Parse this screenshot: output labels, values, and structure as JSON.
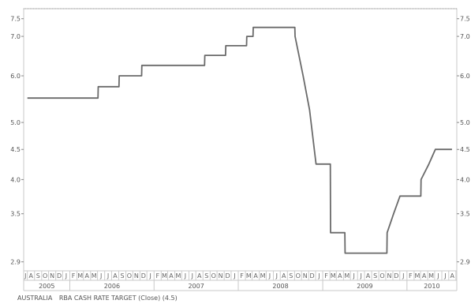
{
  "chart_data": {
    "type": "line",
    "log_scale": true,
    "grid": false,
    "ylim": [
      2.8,
      7.8
    ],
    "x_range": [
      "2005-06-15",
      "2010-08-05"
    ],
    "y_ticks": [
      "7.5",
      "7.0",
      "6.0",
      "5.0",
      "4.5",
      "4.0",
      "3.5",
      "2.9"
    ],
    "y_ticks_right": [
      "7.5",
      "7.0",
      "6.0",
      "5.0",
      "4.5",
      "4.0",
      "3.5",
      "2.9"
    ],
    "month_labels": [
      "J",
      "A",
      "S",
      "O",
      "N",
      "D",
      "J",
      "F",
      "M",
      "A",
      "M",
      "J",
      "J",
      "A",
      "S",
      "O",
      "N",
      "D",
      "J",
      "F",
      "M",
      "A",
      "M",
      "J",
      "J",
      "A",
      "S",
      "O",
      "N",
      "D",
      "J",
      "F",
      "M",
      "A",
      "M",
      "J",
      "J",
      "A",
      "S",
      "O",
      "N",
      "D",
      "J",
      "F",
      "M",
      "A",
      "M",
      "J",
      "J",
      "A",
      "S",
      "O",
      "N",
      "D",
      "J",
      "F",
      "M",
      "A",
      "M",
      "J",
      "J",
      "A"
    ],
    "year_labels": [
      "2005",
      "2006",
      "2007",
      "2008",
      "2009",
      "2010"
    ],
    "series": [
      {
        "name": "AUSTRALIA RBA CASH RATE TARGET (Close) (4.5)",
        "color": "#6a6a6a",
        "points": [
          [
            "2005-07-01",
            5.5
          ],
          [
            "2006-05-03",
            5.5
          ],
          [
            "2006-05-04",
            5.75
          ],
          [
            "2006-08-02",
            5.75
          ],
          [
            "2006-08-03",
            6.0
          ],
          [
            "2006-11-08",
            6.0
          ],
          [
            "2006-11-09",
            6.25
          ],
          [
            "2007-08-08",
            6.25
          ],
          [
            "2007-08-09",
            6.5
          ],
          [
            "2007-11-07",
            6.5
          ],
          [
            "2007-11-08",
            6.75
          ],
          [
            "2008-02-06",
            6.75
          ],
          [
            "2008-02-07",
            7.0
          ],
          [
            "2008-03-05",
            7.0
          ],
          [
            "2008-03-06",
            7.25
          ],
          [
            "2008-09-02",
            7.25
          ],
          [
            "2008-09-03",
            7.0
          ],
          [
            "2008-10-08",
            6.0
          ],
          [
            "2008-11-05",
            5.25
          ],
          [
            "2008-12-03",
            4.25
          ],
          [
            "2009-02-03",
            4.25
          ],
          [
            "2009-02-04",
            3.25
          ],
          [
            "2009-04-07",
            3.25
          ],
          [
            "2009-04-08",
            3.0
          ],
          [
            "2009-10-06",
            3.0
          ],
          [
            "2009-10-07",
            3.25
          ],
          [
            "2009-11-04",
            3.5
          ],
          [
            "2009-12-02",
            3.75
          ],
          [
            "2010-03-02",
            3.75
          ],
          [
            "2010-03-03",
            4.0
          ],
          [
            "2010-04-06",
            4.25
          ],
          [
            "2010-05-04",
            4.5
          ],
          [
            "2010-07-15",
            4.5
          ]
        ]
      }
    ]
  },
  "legend": {
    "label": "AUSTRALIA",
    "series_label": "RBA CASH RATE TARGET (Close) (4.5)"
  }
}
